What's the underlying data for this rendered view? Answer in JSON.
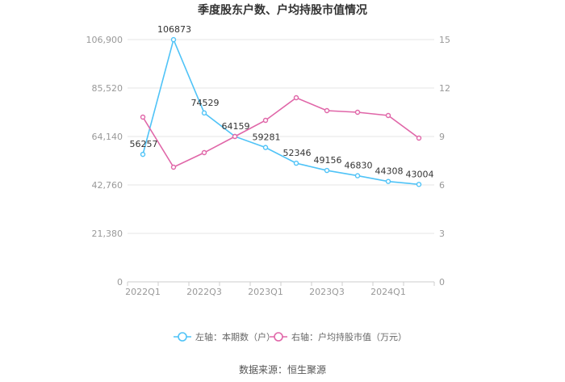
{
  "title": "季度股东户数、户均持股市值情况",
  "source": "数据来源：恒生聚源",
  "colors": {
    "left_series": "#4fc3f7",
    "right_series": "#e066a8",
    "grid": "#e6e6e6",
    "axis": "#cccccc"
  },
  "chart_data": {
    "type": "line",
    "title": "季度股东户数、户均持股市值情况",
    "categories": [
      "2022Q1",
      "2022Q2",
      "2022Q3",
      "2022Q4",
      "2023Q1",
      "2023Q2",
      "2023Q3",
      "2023Q4",
      "2024Q1",
      "2024Q2"
    ],
    "x_tick_labels": [
      "2022Q1",
      "",
      "2022Q3",
      "",
      "2023Q1",
      "",
      "2023Q3",
      "",
      "2024Q1",
      ""
    ],
    "y_left": {
      "min": 0,
      "max": 106900,
      "ticks": [
        0,
        21380,
        42760,
        64140,
        85520,
        106900
      ],
      "tick_labels": [
        "0",
        "21,380",
        "42,760",
        "64,140",
        "85,520",
        "106,900"
      ]
    },
    "y_right": {
      "min": 0,
      "max": 15,
      "ticks": [
        0,
        3,
        6,
        9,
        12,
        15
      ],
      "tick_labels": [
        "0",
        "3",
        "6",
        "9",
        "12",
        "15"
      ]
    },
    "grid": true,
    "legend_position": "bottom",
    "series": [
      {
        "name": "左轴：本期数（户）",
        "axis": "left",
        "values": [
          56257,
          106873,
          74529,
          64159,
          59281,
          52346,
          49156,
          46830,
          44308,
          43004
        ],
        "labels": [
          "56257",
          "106873",
          "74529",
          "64159",
          "59281",
          "52346",
          "49156",
          "46830",
          "44308",
          "43004"
        ]
      },
      {
        "name": "右轴：户均持股市值（万元）",
        "axis": "right",
        "values": [
          10.2,
          7.1,
          8.0,
          9.0,
          10.0,
          11.4,
          10.6,
          10.5,
          10.3,
          8.9
        ]
      }
    ]
  }
}
